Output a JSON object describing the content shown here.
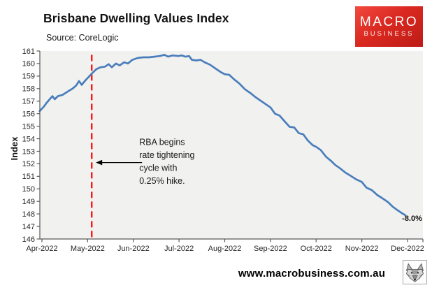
{
  "header": {
    "title": "Brisbane Dwelling Values Index",
    "source": "Source: CoreLogic",
    "logo": {
      "line1": "MACRO",
      "line2": "BUSINESS",
      "bg_color": "#d8281f",
      "text_color": "#ffffff"
    }
  },
  "chart_data": {
    "type": "line",
    "title": "Brisbane Dwelling Values Index",
    "ylabel": "Index",
    "ylim": [
      146,
      161
    ],
    "ytick_labels": [
      "146",
      "147",
      "148",
      "149",
      "150",
      "151",
      "152",
      "153",
      "154",
      "155",
      "156",
      "157",
      "158",
      "159",
      "160",
      "161"
    ],
    "x_categories": [
      "Apr-2022",
      "May-2022",
      "Jun-2022",
      "Jul-2022",
      "Aug-2022",
      "Sep-2022",
      "Oct-2022",
      "Nov-2022",
      "Dec-2022"
    ],
    "grid": false,
    "legend": false,
    "colors": {
      "line": "#4a7ebb",
      "event_line": "#fe0000",
      "plot_bg": "#f1f1f0",
      "axis": "#595959",
      "text": "#262626"
    },
    "series": [
      {
        "name": "Brisbane dwelling values index",
        "color": "#4a7ebb",
        "points": [
          [
            -0.05,
            156.2
          ],
          [
            0.05,
            156.6
          ],
          [
            0.1,
            156.85
          ],
          [
            0.17,
            157.15
          ],
          [
            0.23,
            157.4
          ],
          [
            0.28,
            157.15
          ],
          [
            0.35,
            157.4
          ],
          [
            0.45,
            157.5
          ],
          [
            0.58,
            157.8
          ],
          [
            0.67,
            158.0
          ],
          [
            0.75,
            158.25
          ],
          [
            0.81,
            158.6
          ],
          [
            0.87,
            158.3
          ],
          [
            0.95,
            158.65
          ],
          [
            1.04,
            159.0
          ],
          [
            1.09,
            159.2
          ],
          [
            1.19,
            159.55
          ],
          [
            1.28,
            159.7
          ],
          [
            1.38,
            159.75
          ],
          [
            1.46,
            159.95
          ],
          [
            1.53,
            159.7
          ],
          [
            1.62,
            160.0
          ],
          [
            1.7,
            159.85
          ],
          [
            1.8,
            160.1
          ],
          [
            1.88,
            160.0
          ],
          [
            1.98,
            160.3
          ],
          [
            2.1,
            160.45
          ],
          [
            2.22,
            160.5
          ],
          [
            2.34,
            160.5
          ],
          [
            2.46,
            160.55
          ],
          [
            2.58,
            160.6
          ],
          [
            2.68,
            160.7
          ],
          [
            2.76,
            160.55
          ],
          [
            2.86,
            160.65
          ],
          [
            2.98,
            160.6
          ],
          [
            3.06,
            160.65
          ],
          [
            3.14,
            160.55
          ],
          [
            3.22,
            160.6
          ],
          [
            3.28,
            160.3
          ],
          [
            3.38,
            160.25
          ],
          [
            3.47,
            160.3
          ],
          [
            3.56,
            160.1
          ],
          [
            3.68,
            159.9
          ],
          [
            3.8,
            159.6
          ],
          [
            3.92,
            159.3
          ],
          [
            4.0,
            159.15
          ],
          [
            4.1,
            159.1
          ],
          [
            4.2,
            158.75
          ],
          [
            4.32,
            158.4
          ],
          [
            4.44,
            157.95
          ],
          [
            4.56,
            157.65
          ],
          [
            4.68,
            157.3
          ],
          [
            4.8,
            157.0
          ],
          [
            4.9,
            156.75
          ],
          [
            5.0,
            156.5
          ],
          [
            5.1,
            156.0
          ],
          [
            5.2,
            155.85
          ],
          [
            5.32,
            155.35
          ],
          [
            5.42,
            154.95
          ],
          [
            5.52,
            154.9
          ],
          [
            5.62,
            154.45
          ],
          [
            5.72,
            154.35
          ],
          [
            5.82,
            153.85
          ],
          [
            5.92,
            153.5
          ],
          [
            6.0,
            153.35
          ],
          [
            6.1,
            153.1
          ],
          [
            6.22,
            152.55
          ],
          [
            6.32,
            152.25
          ],
          [
            6.42,
            151.9
          ],
          [
            6.52,
            151.65
          ],
          [
            6.64,
            151.3
          ],
          [
            6.75,
            151.05
          ],
          [
            6.88,
            150.75
          ],
          [
            7.0,
            150.55
          ],
          [
            7.1,
            150.1
          ],
          [
            7.22,
            149.9
          ],
          [
            7.34,
            149.5
          ],
          [
            7.45,
            149.25
          ],
          [
            7.57,
            148.95
          ],
          [
            7.67,
            148.6
          ],
          [
            7.78,
            148.3
          ],
          [
            7.88,
            148.05
          ],
          [
            7.95,
            147.9
          ]
        ]
      }
    ],
    "event_line": {
      "x_month": 1.09,
      "top_value": 160.7,
      "bottom_value": 146.1,
      "style": "dashed"
    },
    "annotation": {
      "lines": [
        "RBA begins",
        "rate tightening",
        "cycle with",
        "0.25% hike."
      ],
      "anchor_month": 2.13,
      "anchor_value": 153.5,
      "arrow_value": 152.1,
      "arrow_from_month": 2.19,
      "arrow_to_month": 1.18
    },
    "end_label": {
      "text": "-8.0%",
      "anchor_month": 8.32,
      "anchor_value": 147.45
    }
  },
  "footer": {
    "url": "www.macrobusiness.com.au",
    "icon": "wolf-icon"
  }
}
